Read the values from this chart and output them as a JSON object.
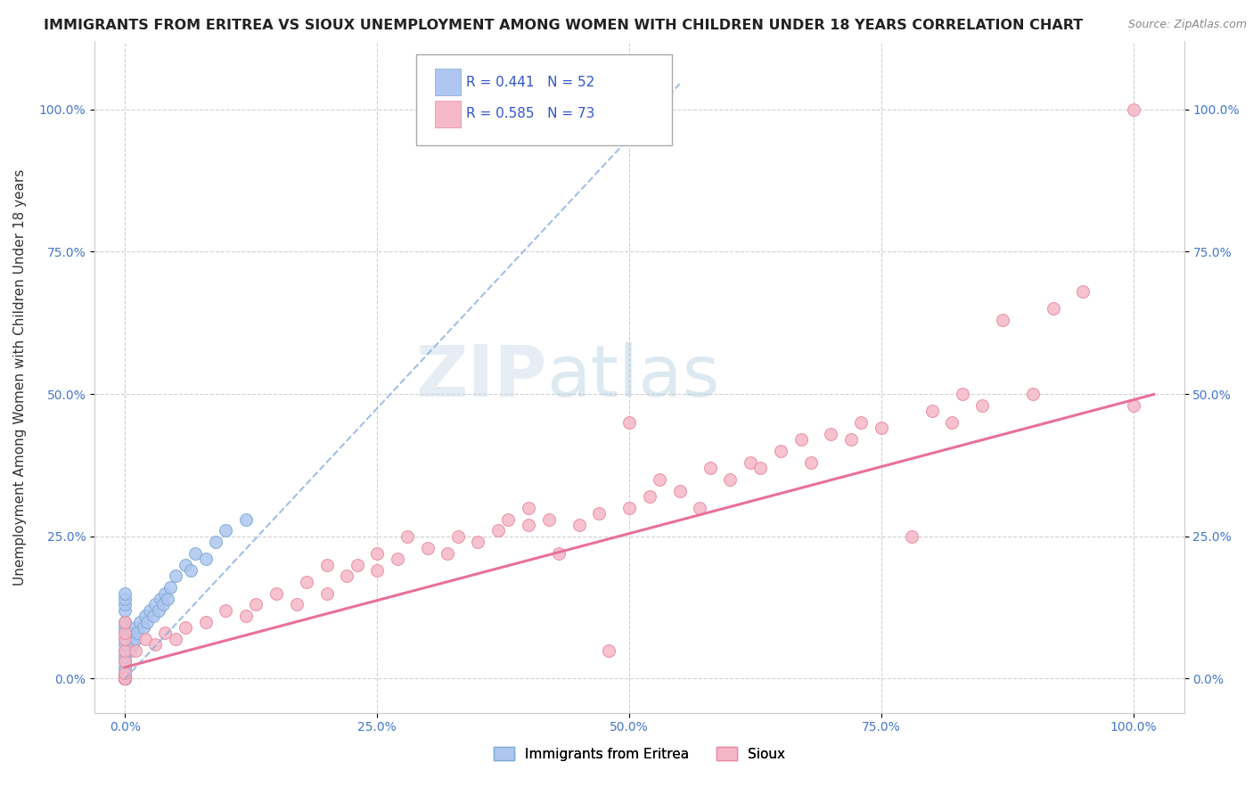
{
  "title": "IMMIGRANTS FROM ERITREA VS SIOUX UNEMPLOYMENT AMONG WOMEN WITH CHILDREN UNDER 18 YEARS CORRELATION CHART",
  "source": "Source: ZipAtlas.com",
  "ylabel": "Unemployment Among Women with Children Under 18 years",
  "xticklabels": [
    "0.0%",
    "25.0%",
    "50.0%",
    "75.0%",
    "100.0%"
  ],
  "xticks": [
    0,
    0.25,
    0.5,
    0.75,
    1.0
  ],
  "yticklabels": [
    "0.0%",
    "25.0%",
    "50.0%",
    "75.0%",
    "100.0%"
  ],
  "yticks": [
    0,
    0.25,
    0.5,
    0.75,
    1.0
  ],
  "xlim": [
    -0.03,
    1.05
  ],
  "ylim": [
    -0.06,
    1.12
  ],
  "eritrea_color": "#aec6f0",
  "eritrea_edge": "#7baad4",
  "sioux_color": "#f5b8c8",
  "sioux_edge": "#e88aa0",
  "legend_eritrea_label": "R = 0.441   N = 52",
  "legend_sioux_label": "R = 0.585   N = 73",
  "legend_title_eritrea": "Immigrants from Eritrea",
  "legend_title_sioux": "Sioux",
  "R_eritrea": 0.441,
  "N_eritrea": 52,
  "R_sioux": 0.585,
  "N_sioux": 73,
  "watermark_zip": "ZIP",
  "watermark_atlas": "atlas",
  "background_color": "#ffffff",
  "grid_color": "#cccccc",
  "title_fontsize": 11.5,
  "axis_label_fontsize": 11,
  "tick_fontsize": 10,
  "eritrea_x": [
    0.0,
    0.0,
    0.0,
    0.0,
    0.0,
    0.0,
    0.0,
    0.0,
    0.0,
    0.0,
    0.0,
    0.0,
    0.0,
    0.0,
    0.0,
    0.0,
    0.0,
    0.0,
    0.0,
    0.0,
    0.0,
    0.0,
    0.0,
    0.0,
    0.0,
    0.005,
    0.005,
    0.008,
    0.01,
    0.01,
    0.012,
    0.015,
    0.018,
    0.02,
    0.022,
    0.025,
    0.028,
    0.03,
    0.033,
    0.035,
    0.038,
    0.04,
    0.042,
    0.045,
    0.05,
    0.06,
    0.065,
    0.07,
    0.08,
    0.09,
    0.1,
    0.12
  ],
  "eritrea_y": [
    0.0,
    0.0,
    0.0,
    0.0,
    0.0,
    0.0,
    0.0,
    0.0,
    0.0,
    0.0,
    0.0,
    0.01,
    0.02,
    0.03,
    0.04,
    0.05,
    0.06,
    0.07,
    0.08,
    0.09,
    0.1,
    0.12,
    0.13,
    0.14,
    0.15,
    0.05,
    0.08,
    0.06,
    0.07,
    0.09,
    0.08,
    0.1,
    0.09,
    0.11,
    0.1,
    0.12,
    0.11,
    0.13,
    0.12,
    0.14,
    0.13,
    0.15,
    0.14,
    0.16,
    0.18,
    0.2,
    0.19,
    0.22,
    0.21,
    0.24,
    0.26,
    0.28
  ],
  "sioux_x": [
    0.0,
    0.0,
    0.0,
    0.0,
    0.0,
    0.0,
    0.0,
    0.0,
    0.0,
    0.0,
    0.0,
    0.01,
    0.02,
    0.03,
    0.04,
    0.05,
    0.06,
    0.08,
    0.1,
    0.12,
    0.13,
    0.15,
    0.17,
    0.18,
    0.2,
    0.2,
    0.22,
    0.23,
    0.25,
    0.25,
    0.27,
    0.28,
    0.3,
    0.32,
    0.33,
    0.35,
    0.37,
    0.38,
    0.4,
    0.4,
    0.42,
    0.43,
    0.45,
    0.47,
    0.48,
    0.5,
    0.5,
    0.52,
    0.53,
    0.55,
    0.57,
    0.58,
    0.6,
    0.62,
    0.63,
    0.65,
    0.67,
    0.68,
    0.7,
    0.72,
    0.73,
    0.75,
    0.78,
    0.8,
    0.82,
    0.83,
    0.85,
    0.87,
    0.9,
    0.92,
    0.95,
    1.0,
    1.0
  ],
  "sioux_y": [
    0.0,
    0.0,
    0.0,
    0.0,
    0.0,
    0.01,
    0.03,
    0.05,
    0.07,
    0.08,
    0.1,
    0.05,
    0.07,
    0.06,
    0.08,
    0.07,
    0.09,
    0.1,
    0.12,
    0.11,
    0.13,
    0.15,
    0.13,
    0.17,
    0.15,
    0.2,
    0.18,
    0.2,
    0.19,
    0.22,
    0.21,
    0.25,
    0.23,
    0.22,
    0.25,
    0.24,
    0.26,
    0.28,
    0.27,
    0.3,
    0.28,
    0.22,
    0.27,
    0.29,
    0.05,
    0.3,
    0.45,
    0.32,
    0.35,
    0.33,
    0.3,
    0.37,
    0.35,
    0.38,
    0.37,
    0.4,
    0.42,
    0.38,
    0.43,
    0.42,
    0.45,
    0.44,
    0.25,
    0.47,
    0.45,
    0.5,
    0.48,
    0.63,
    0.5,
    0.65,
    0.68,
    1.0,
    0.48
  ],
  "eritrea_reg": [
    0.0,
    1.9
  ],
  "sioux_reg_slope": 0.47,
  "sioux_reg_intercept": 0.02
}
